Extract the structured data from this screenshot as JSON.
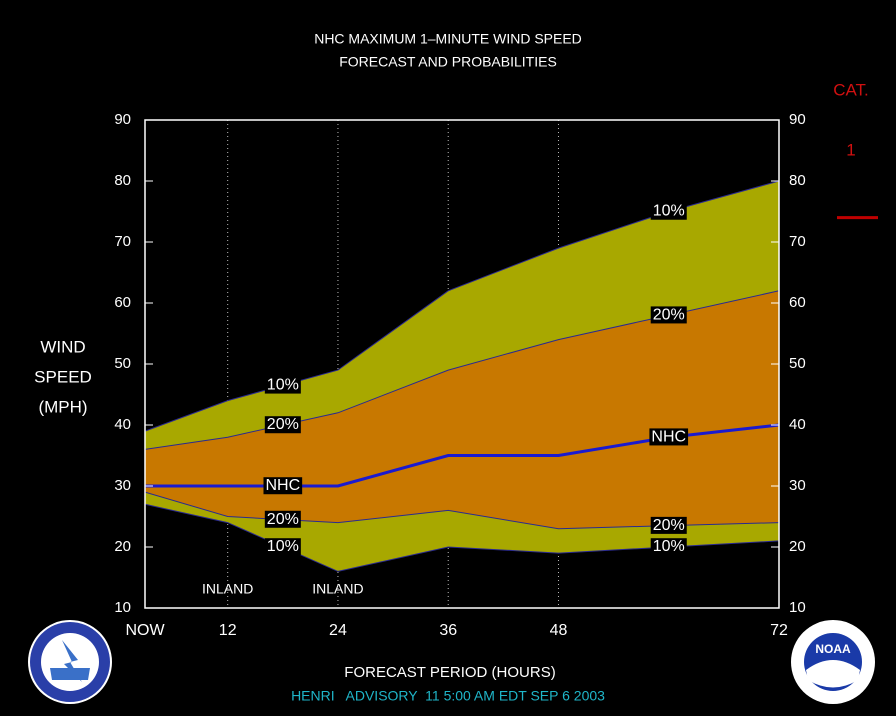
{
  "chart_data": {
    "type": "band",
    "title": [
      "NHC MAXIMUM 1–MINUTE WIND SPEED",
      "FORECAST AND PROBABILITIES"
    ],
    "y_label": [
      "WIND",
      "SPEED",
      "(MPH)"
    ],
    "x_label": "FORECAST PERIOD (HOURS)",
    "footer": "HENRI   ADVISORY  11 5:00 AM EDT SEP 6 2003",
    "x": [
      3,
      12,
      24,
      36,
      48,
      60,
      72
    ],
    "xlim": [
      3,
      72
    ],
    "xticks": [
      {
        "value": 3,
        "label": "NOW"
      },
      12,
      24,
      36,
      48,
      72
    ],
    "ylim": [
      10,
      90
    ],
    "yticks": [
      10,
      20,
      30,
      40,
      50,
      60,
      70,
      80,
      90
    ],
    "y2lim": [
      10,
      90
    ],
    "y2ticks": [
      10,
      20,
      30,
      40,
      50,
      60,
      70,
      80,
      90
    ],
    "annotations": [
      {
        "text": "INLAND",
        "x": 12
      },
      {
        "text": "INLAND",
        "x": 24
      }
    ],
    "category_label": "CAT.",
    "category": "1",
    "category_threshold": 74,
    "logo_text": "NOAA",
    "series": [
      {
        "name": "10%",
        "color": "#a8a800",
        "values": [
          39,
          44,
          49,
          62,
          69,
          75,
          80
        ]
      },
      {
        "name": "20%",
        "color": "#c87800",
        "values": [
          36,
          38,
          42,
          49,
          54,
          58,
          62
        ]
      },
      {
        "name": "NHC",
        "color": "#1a1ad0",
        "values": [
          30,
          30,
          30,
          35,
          35,
          38,
          40
        ]
      },
      {
        "name": "20%",
        "color": "#c87800",
        "values": [
          29,
          25,
          24,
          26,
          23,
          23.5,
          24
        ]
      },
      {
        "name": "10%",
        "color": "#a8a800",
        "values": [
          27,
          24,
          16,
          20,
          19,
          20,
          21
        ]
      }
    ]
  }
}
